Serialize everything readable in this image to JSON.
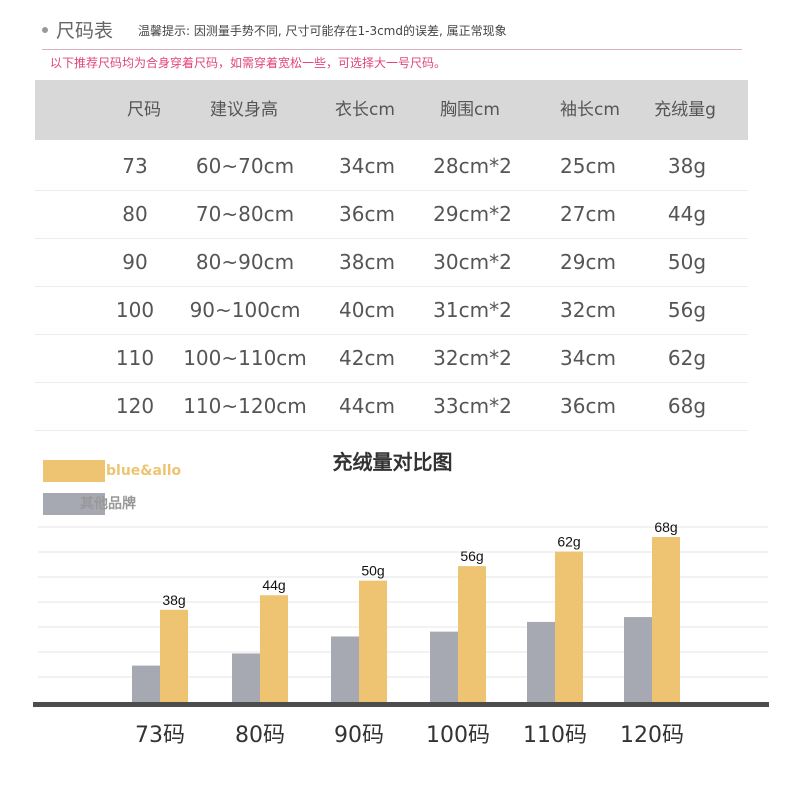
{
  "header": {
    "title": "尺码表",
    "tip": "温馨提示: 因测量手势不同, 尺寸可能存在1-3cmd的误差, 属正常现象",
    "recommend": "以下推荐尺码均为合身穿着尺码，如需穿着宽松一些，可选择大一号尺码。"
  },
  "table": {
    "headers": [
      "尺码",
      "建议身高",
      "衣长cm",
      "胸围cm",
      "袖长cm",
      "充绒量g"
    ],
    "rows": [
      [
        "73",
        "60~70cm",
        "34cm",
        "28cm*2",
        "25cm",
        "38g"
      ],
      [
        "80",
        "70~80cm",
        "36cm",
        "29cm*2",
        "27cm",
        "44g"
      ],
      [
        "90",
        "80~90cm",
        "38cm",
        "30cm*2",
        "29cm",
        "50g"
      ],
      [
        "100",
        "90~100cm",
        "40cm",
        "31cm*2",
        "32cm",
        "56g"
      ],
      [
        "110",
        "100~110cm",
        "42cm",
        "32cm*2",
        "34cm",
        "62g"
      ],
      [
        "120",
        "110~120cm",
        "44cm",
        "33cm*2",
        "36cm",
        "68g"
      ]
    ]
  },
  "colors": {
    "brand": "#eec472",
    "other": "#a6a9b1",
    "baseline": "#4d4d4d",
    "grid": "#e6e6e6"
  },
  "chart_data": {
    "type": "bar",
    "title": "充绒量对比图",
    "categories": [
      "73码",
      "80码",
      "90码",
      "100码",
      "110码",
      "120码"
    ],
    "series": [
      {
        "name": "blue&allo",
        "values": [
          38,
          44,
          50,
          56,
          62,
          68
        ],
        "labels": [
          "38g",
          "44g",
          "50g",
          "56g",
          "62g",
          "68g"
        ]
      },
      {
        "name": "其他品牌",
        "values": [
          15,
          20,
          27,
          29,
          33,
          35
        ]
      }
    ],
    "ylim": [
      0,
      75
    ],
    "grid": true,
    "legend": "top-left"
  }
}
